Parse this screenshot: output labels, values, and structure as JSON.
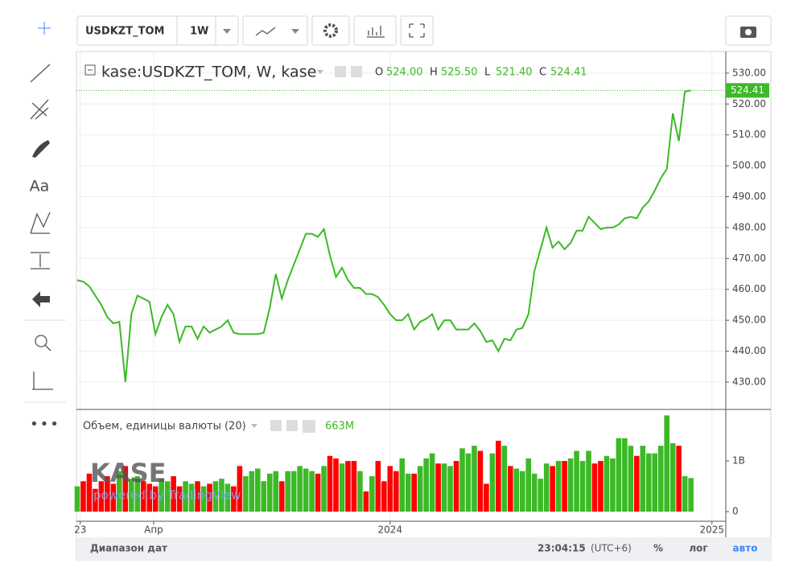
{
  "toolbar": {
    "symbol": "USDKZT_TOM",
    "interval": "1W",
    "text_tool": "Aa"
  },
  "watermark": {
    "logo": "KASE",
    "text": "powered by TradingView"
  },
  "bottom_bar": {
    "range": "Диапазон дат",
    "time": "23:04:15",
    "tz": "(UTC+6)",
    "percent": "%",
    "log": "лог",
    "auto": "авто"
  },
  "chart_data": [
    {
      "type": "line",
      "grid": true,
      "series": [
        {
          "name": "kase:USDKZT_TOM, W, kase",
          "color": "#3cb926",
          "values": [
            463,
            462.5,
            461,
            458,
            455,
            451,
            449,
            449.5,
            430,
            452,
            458,
            457,
            456,
            445.5,
            451,
            455,
            452,
            443,
            448,
            448,
            444,
            448,
            446,
            447,
            448,
            450,
            446,
            445.5,
            445.5,
            445.5,
            445.5,
            446,
            454,
            465,
            457,
            463,
            468,
            473,
            478,
            478,
            477,
            479.5,
            471,
            464,
            467,
            463,
            460.5,
            460.5,
            458.5,
            458.5,
            457.5,
            455,
            452,
            450,
            450,
            452,
            447,
            449.5,
            450.5,
            452,
            447,
            450,
            450,
            447,
            447,
            447,
            449,
            446.5,
            443,
            443.5,
            440,
            444,
            443.5,
            447,
            447.5,
            452,
            466,
            473,
            480,
            473.5,
            475.5,
            473,
            475,
            479,
            479,
            483.5,
            481.5,
            479.5,
            480,
            480,
            481,
            483,
            483.5,
            483,
            486.5,
            488.5,
            492,
            496,
            499,
            517,
            508,
            524,
            524.41
          ]
        }
      ],
      "last_label": "524.41",
      "ohlc": [
        {
          "key": "O",
          "value": 524,
          "label": "524.00"
        },
        {
          "key": "H",
          "value": 525.5,
          "label": "525.50"
        },
        {
          "key": "L",
          "value": 521.4,
          "label": "521.40"
        },
        {
          "key": "C",
          "value": 524.41,
          "label": "524.41"
        }
      ],
      "ylim": [
        421.4,
        537
      ],
      "yticks": [
        {
          "value": 430,
          "label": "430.00"
        },
        {
          "value": 440,
          "label": "440.00"
        },
        {
          "value": 450,
          "label": "450.00"
        },
        {
          "value": 460,
          "label": "460.00"
        },
        {
          "value": 470,
          "label": "470.00"
        },
        {
          "value": 480,
          "label": "480.00"
        },
        {
          "value": 490,
          "label": "490.00"
        },
        {
          "value": 500,
          "label": "500.00"
        },
        {
          "value": 510,
          "label": "510.00"
        },
        {
          "value": 520,
          "label": "520.00"
        },
        {
          "value": 530,
          "label": "530.00"
        }
      ],
      "xlim": [
        0,
        107
      ],
      "xticks": [
        {
          "value": 0.5,
          "label": "23"
        },
        {
          "value": 12.7,
          "label": "Апр"
        },
        {
          "value": 52,
          "label": "2024"
        },
        {
          "value": 105.5,
          "label": "2025"
        }
      ]
    },
    {
      "type": "bar",
      "legend": "Объем, единицы валюты (20)",
      "last_label": "663M",
      "up_color": "#3cb926",
      "down_color": "#ff0000",
      "values": [
        0.5,
        0.6,
        0.75,
        0.45,
        0.6,
        0.7,
        0.55,
        0.8,
        0.9,
        0.65,
        0.7,
        0.6,
        0.55,
        0.5,
        0.65,
        0.6,
        0.7,
        0.5,
        0.6,
        0.55,
        0.6,
        0.5,
        0.55,
        0.6,
        0.65,
        0.55,
        0.5,
        0.9,
        0.7,
        0.8,
        0.85,
        0.6,
        0.75,
        0.8,
        0.6,
        0.8,
        0.8,
        0.9,
        0.85,
        0.8,
        0.75,
        0.9,
        1.1,
        1.05,
        0.95,
        1.0,
        1.0,
        0.8,
        0.4,
        0.7,
        1.0,
        0.6,
        0.9,
        0.8,
        1.05,
        0.75,
        0.75,
        0.9,
        1.05,
        1.15,
        0.95,
        0.95,
        0.9,
        1.0,
        1.25,
        1.15,
        1.3,
        1.2,
        0.55,
        1.15,
        1.4,
        1.3,
        0.9,
        0.85,
        0.8,
        1.05,
        0.75,
        0.65,
        0.95,
        0.9,
        1.0,
        1.0,
        1.05,
        1.2,
        1.0,
        1.2,
        0.95,
        1.0,
        1.1,
        1.05,
        1.45,
        1.45,
        1.3,
        1.1,
        1.3,
        1.15,
        1.15,
        1.3,
        1.9,
        1.35,
        1.3,
        0.7,
        0.663
      ],
      "ylim": [
        -0.19,
        1.97
      ],
      "yticks": [
        0,
        {
          "value": 1,
          "label": "1B"
        }
      ]
    }
  ]
}
